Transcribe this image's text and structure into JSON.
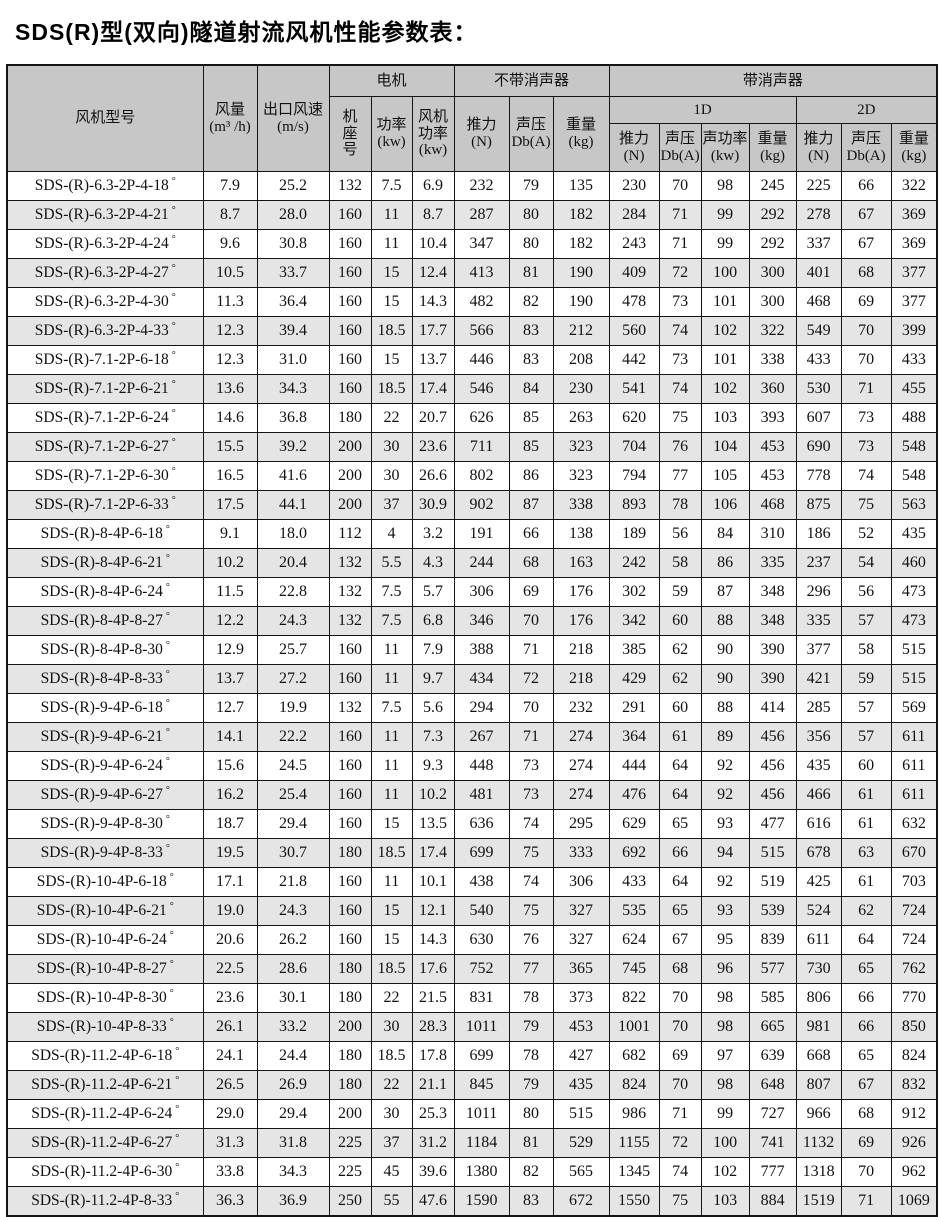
{
  "title": "SDS(R)型(双向)隧道射流风机性能参数表：",
  "table": {
    "group_headers": {
      "motor": "电机",
      "no_silencer": "不带消声器",
      "with_silencer": "带消声器",
      "one_d": "1D",
      "two_d": "2D"
    },
    "columns": {
      "model": "风机型号",
      "airflow": "风量\n(m³ /h)",
      "outlet_speed": "出口风速\n(m/s)",
      "frame": "机\n座\n号",
      "motor_power": "功率\n(kw)",
      "fan_power": "风机\n功率\n(kw)",
      "thrust": "推力\n(N)",
      "sound_pressure": "声压\nDb(A)",
      "sound_power": "声功率\n(kw)",
      "weight": "重量\n(kg)"
    },
    "degree_suffix": "°",
    "column_keys": [
      "model",
      "airflow",
      "outlet-speed",
      "frame",
      "motor-power",
      "fan-power",
      "ns-thrust",
      "ns-sound-pressure",
      "ns-weight",
      "1d-thrust",
      "1d-sound-pressure",
      "1d-sound-power",
      "1d-weight",
      "2d-thrust",
      "2d-sound-pressure",
      "2d-weight"
    ],
    "rows": [
      [
        "SDS-(R)-6.3-2P-4-18",
        "7.9",
        "25.2",
        "132",
        "7.5",
        "6.9",
        "232",
        "79",
        "135",
        "230",
        "70",
        "98",
        "245",
        "225",
        "66",
        "322"
      ],
      [
        "SDS-(R)-6.3-2P-4-21",
        "8.7",
        "28.0",
        "160",
        "11",
        "8.7",
        "287",
        "80",
        "182",
        "284",
        "71",
        "99",
        "292",
        "278",
        "67",
        "369"
      ],
      [
        "SDS-(R)-6.3-2P-4-24",
        "9.6",
        "30.8",
        "160",
        "11",
        "10.4",
        "347",
        "80",
        "182",
        "243",
        "71",
        "99",
        "292",
        "337",
        "67",
        "369"
      ],
      [
        "SDS-(R)-6.3-2P-4-27",
        "10.5",
        "33.7",
        "160",
        "15",
        "12.4",
        "413",
        "81",
        "190",
        "409",
        "72",
        "100",
        "300",
        "401",
        "68",
        "377"
      ],
      [
        "SDS-(R)-6.3-2P-4-30",
        "11.3",
        "36.4",
        "160",
        "15",
        "14.3",
        "482",
        "82",
        "190",
        "478",
        "73",
        "101",
        "300",
        "468",
        "69",
        "377"
      ],
      [
        "SDS-(R)-6.3-2P-4-33",
        "12.3",
        "39.4",
        "160",
        "18.5",
        "17.7",
        "566",
        "83",
        "212",
        "560",
        "74",
        "102",
        "322",
        "549",
        "70",
        "399"
      ],
      [
        "SDS-(R)-7.1-2P-6-18",
        "12.3",
        "31.0",
        "160",
        "15",
        "13.7",
        "446",
        "83",
        "208",
        "442",
        "73",
        "101",
        "338",
        "433",
        "70",
        "433"
      ],
      [
        "SDS-(R)-7.1-2P-6-21",
        "13.6",
        "34.3",
        "160",
        "18.5",
        "17.4",
        "546",
        "84",
        "230",
        "541",
        "74",
        "102",
        "360",
        "530",
        "71",
        "455"
      ],
      [
        "SDS-(R)-7.1-2P-6-24",
        "14.6",
        "36.8",
        "180",
        "22",
        "20.7",
        "626",
        "85",
        "263",
        "620",
        "75",
        "103",
        "393",
        "607",
        "73",
        "488"
      ],
      [
        "SDS-(R)-7.1-2P-6-27",
        "15.5",
        "39.2",
        "200",
        "30",
        "23.6",
        "711",
        "85",
        "323",
        "704",
        "76",
        "104",
        "453",
        "690",
        "73",
        "548"
      ],
      [
        "SDS-(R)-7.1-2P-6-30",
        "16.5",
        "41.6",
        "200",
        "30",
        "26.6",
        "802",
        "86",
        "323",
        "794",
        "77",
        "105",
        "453",
        "778",
        "74",
        "548"
      ],
      [
        "SDS-(R)-7.1-2P-6-33",
        "17.5",
        "44.1",
        "200",
        "37",
        "30.9",
        "902",
        "87",
        "338",
        "893",
        "78",
        "106",
        "468",
        "875",
        "75",
        "563"
      ],
      [
        "SDS-(R)-8-4P-6-18",
        "9.1",
        "18.0",
        "112",
        "4",
        "3.2",
        "191",
        "66",
        "138",
        "189",
        "56",
        "84",
        "310",
        "186",
        "52",
        "435"
      ],
      [
        "SDS-(R)-8-4P-6-21",
        "10.2",
        "20.4",
        "132",
        "5.5",
        "4.3",
        "244",
        "68",
        "163",
        "242",
        "58",
        "86",
        "335",
        "237",
        "54",
        "460"
      ],
      [
        "SDS-(R)-8-4P-6-24",
        "11.5",
        "22.8",
        "132",
        "7.5",
        "5.7",
        "306",
        "69",
        "176",
        "302",
        "59",
        "87",
        "348",
        "296",
        "56",
        "473"
      ],
      [
        "SDS-(R)-8-4P-8-27",
        "12.2",
        "24.3",
        "132",
        "7.5",
        "6.8",
        "346",
        "70",
        "176",
        "342",
        "60",
        "88",
        "348",
        "335",
        "57",
        "473"
      ],
      [
        "SDS-(R)-8-4P-8-30",
        "12.9",
        "25.7",
        "160",
        "11",
        "7.9",
        "388",
        "71",
        "218",
        "385",
        "62",
        "90",
        "390",
        "377",
        "58",
        "515"
      ],
      [
        "SDS-(R)-8-4P-8-33",
        "13.7",
        "27.2",
        "160",
        "11",
        "9.7",
        "434",
        "72",
        "218",
        "429",
        "62",
        "90",
        "390",
        "421",
        "59",
        "515"
      ],
      [
        "SDS-(R)-9-4P-6-18",
        "12.7",
        "19.9",
        "132",
        "7.5",
        "5.6",
        "294",
        "70",
        "232",
        "291",
        "60",
        "88",
        "414",
        "285",
        "57",
        "569"
      ],
      [
        "SDS-(R)-9-4P-6-21",
        "14.1",
        "22.2",
        "160",
        "11",
        "7.3",
        "267",
        "71",
        "274",
        "364",
        "61",
        "89",
        "456",
        "356",
        "57",
        "611"
      ],
      [
        "SDS-(R)-9-4P-6-24",
        "15.6",
        "24.5",
        "160",
        "11",
        "9.3",
        "448",
        "73",
        "274",
        "444",
        "64",
        "92",
        "456",
        "435",
        "60",
        "611"
      ],
      [
        "SDS-(R)-9-4P-6-27",
        "16.2",
        "25.4",
        "160",
        "11",
        "10.2",
        "481",
        "73",
        "274",
        "476",
        "64",
        "92",
        "456",
        "466",
        "61",
        "611"
      ],
      [
        "SDS-(R)-9-4P-8-30",
        "18.7",
        "29.4",
        "160",
        "15",
        "13.5",
        "636",
        "74",
        "295",
        "629",
        "65",
        "93",
        "477",
        "616",
        "61",
        "632"
      ],
      [
        "SDS-(R)-9-4P-8-33",
        "19.5",
        "30.7",
        "180",
        "18.5",
        "17.4",
        "699",
        "75",
        "333",
        "692",
        "66",
        "94",
        "515",
        "678",
        "63",
        "670"
      ],
      [
        "SDS-(R)-10-4P-6-18",
        "17.1",
        "21.8",
        "160",
        "11",
        "10.1",
        "438",
        "74",
        "306",
        "433",
        "64",
        "92",
        "519",
        "425",
        "61",
        "703"
      ],
      [
        "SDS-(R)-10-4P-6-21",
        "19.0",
        "24.3",
        "160",
        "15",
        "12.1",
        "540",
        "75",
        "327",
        "535",
        "65",
        "93",
        "539",
        "524",
        "62",
        "724"
      ],
      [
        "SDS-(R)-10-4P-6-24",
        "20.6",
        "26.2",
        "160",
        "15",
        "14.3",
        "630",
        "76",
        "327",
        "624",
        "67",
        "95",
        "839",
        "611",
        "64",
        "724"
      ],
      [
        "SDS-(R)-10-4P-8-27",
        "22.5",
        "28.6",
        "180",
        "18.5",
        "17.6",
        "752",
        "77",
        "365",
        "745",
        "68",
        "96",
        "577",
        "730",
        "65",
        "762"
      ],
      [
        "SDS-(R)-10-4P-8-30",
        "23.6",
        "30.1",
        "180",
        "22",
        "21.5",
        "831",
        "78",
        "373",
        "822",
        "70",
        "98",
        "585",
        "806",
        "66",
        "770"
      ],
      [
        "SDS-(R)-10-4P-8-33",
        "26.1",
        "33.2",
        "200",
        "30",
        "28.3",
        "1011",
        "79",
        "453",
        "1001",
        "70",
        "98",
        "665",
        "981",
        "66",
        "850"
      ],
      [
        "SDS-(R)-11.2-4P-6-18",
        "24.1",
        "24.4",
        "180",
        "18.5",
        "17.8",
        "699",
        "78",
        "427",
        "682",
        "69",
        "97",
        "639",
        "668",
        "65",
        "824"
      ],
      [
        "SDS-(R)-11.2-4P-6-21",
        "26.5",
        "26.9",
        "180",
        "22",
        "21.1",
        "845",
        "79",
        "435",
        "824",
        "70",
        "98",
        "648",
        "807",
        "67",
        "832"
      ],
      [
        "SDS-(R)-11.2-4P-6-24",
        "29.0",
        "29.4",
        "200",
        "30",
        "25.3",
        "1011",
        "80",
        "515",
        "986",
        "71",
        "99",
        "727",
        "966",
        "68",
        "912"
      ],
      [
        "SDS-(R)-11.2-4P-6-27",
        "31.3",
        "31.8",
        "225",
        "37",
        "31.2",
        "1184",
        "81",
        "529",
        "1155",
        "72",
        "100",
        "741",
        "1132",
        "69",
        "926"
      ],
      [
        "SDS-(R)-11.2-4P-6-30",
        "33.8",
        "34.3",
        "225",
        "45",
        "39.6",
        "1380",
        "82",
        "565",
        "1345",
        "74",
        "102",
        "777",
        "1318",
        "70",
        "962"
      ],
      [
        "SDS-(R)-11.2-4P-8-33",
        "36.3",
        "36.9",
        "250",
        "55",
        "47.6",
        "1590",
        "83",
        "672",
        "1550",
        "75",
        "103",
        "884",
        "1519",
        "71",
        "1069"
      ]
    ]
  },
  "colors": {
    "header_bg": "#c7c7c7",
    "stripe_bg": "#e5e5e5",
    "border": "#141414"
  }
}
